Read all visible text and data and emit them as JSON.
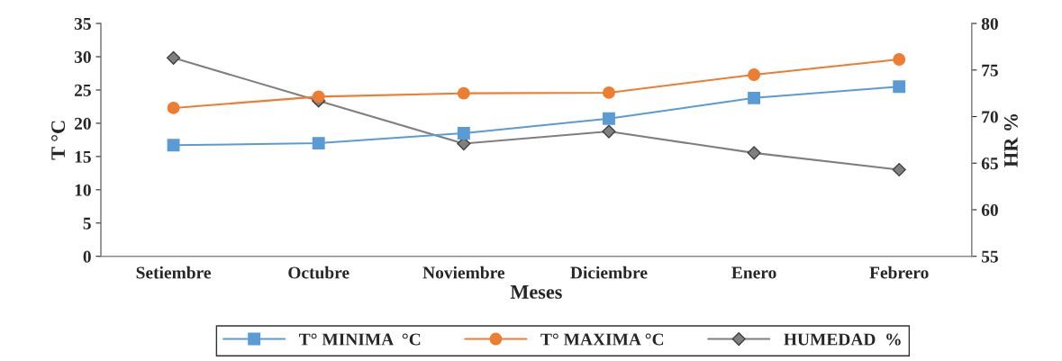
{
  "chart_data": {
    "type": "line",
    "xlabel": "Meses",
    "ylabel": "T °C",
    "y2label": "HR %",
    "categories": [
      "Setiembre",
      "Octubre",
      "Noviembre",
      "Diciembre",
      "Enero",
      "Febrero"
    ],
    "series": [
      {
        "name": "T° MINIMA  °C",
        "color": "#5b9bd5",
        "marker": "square",
        "values": [
          16.7,
          17.0,
          18.5,
          20.7,
          23.8,
          25.5
        ]
      },
      {
        "name": "T° MAXIMA °C",
        "color": "#ed7d31",
        "marker": "circle",
        "values": [
          22.3,
          24.0,
          24.5,
          24.6,
          27.3,
          29.6
        ]
      },
      {
        "name": "HUMEDAD  %",
        "color": "#7f7f7f",
        "marker": "diamond",
        "axis": "y2",
        "values": [
          76.3,
          71.7,
          67.1,
          68.4,
          66.1,
          64.3
        ]
      }
    ],
    "ylim": [
      0,
      35
    ],
    "yticks": [
      0,
      5,
      10,
      15,
      20,
      25,
      30,
      35
    ],
    "y2lim": [
      55,
      80
    ],
    "y2ticks": [
      55,
      60,
      65,
      70,
      75,
      80
    ],
    "grid": false,
    "legend": "bottom"
  }
}
